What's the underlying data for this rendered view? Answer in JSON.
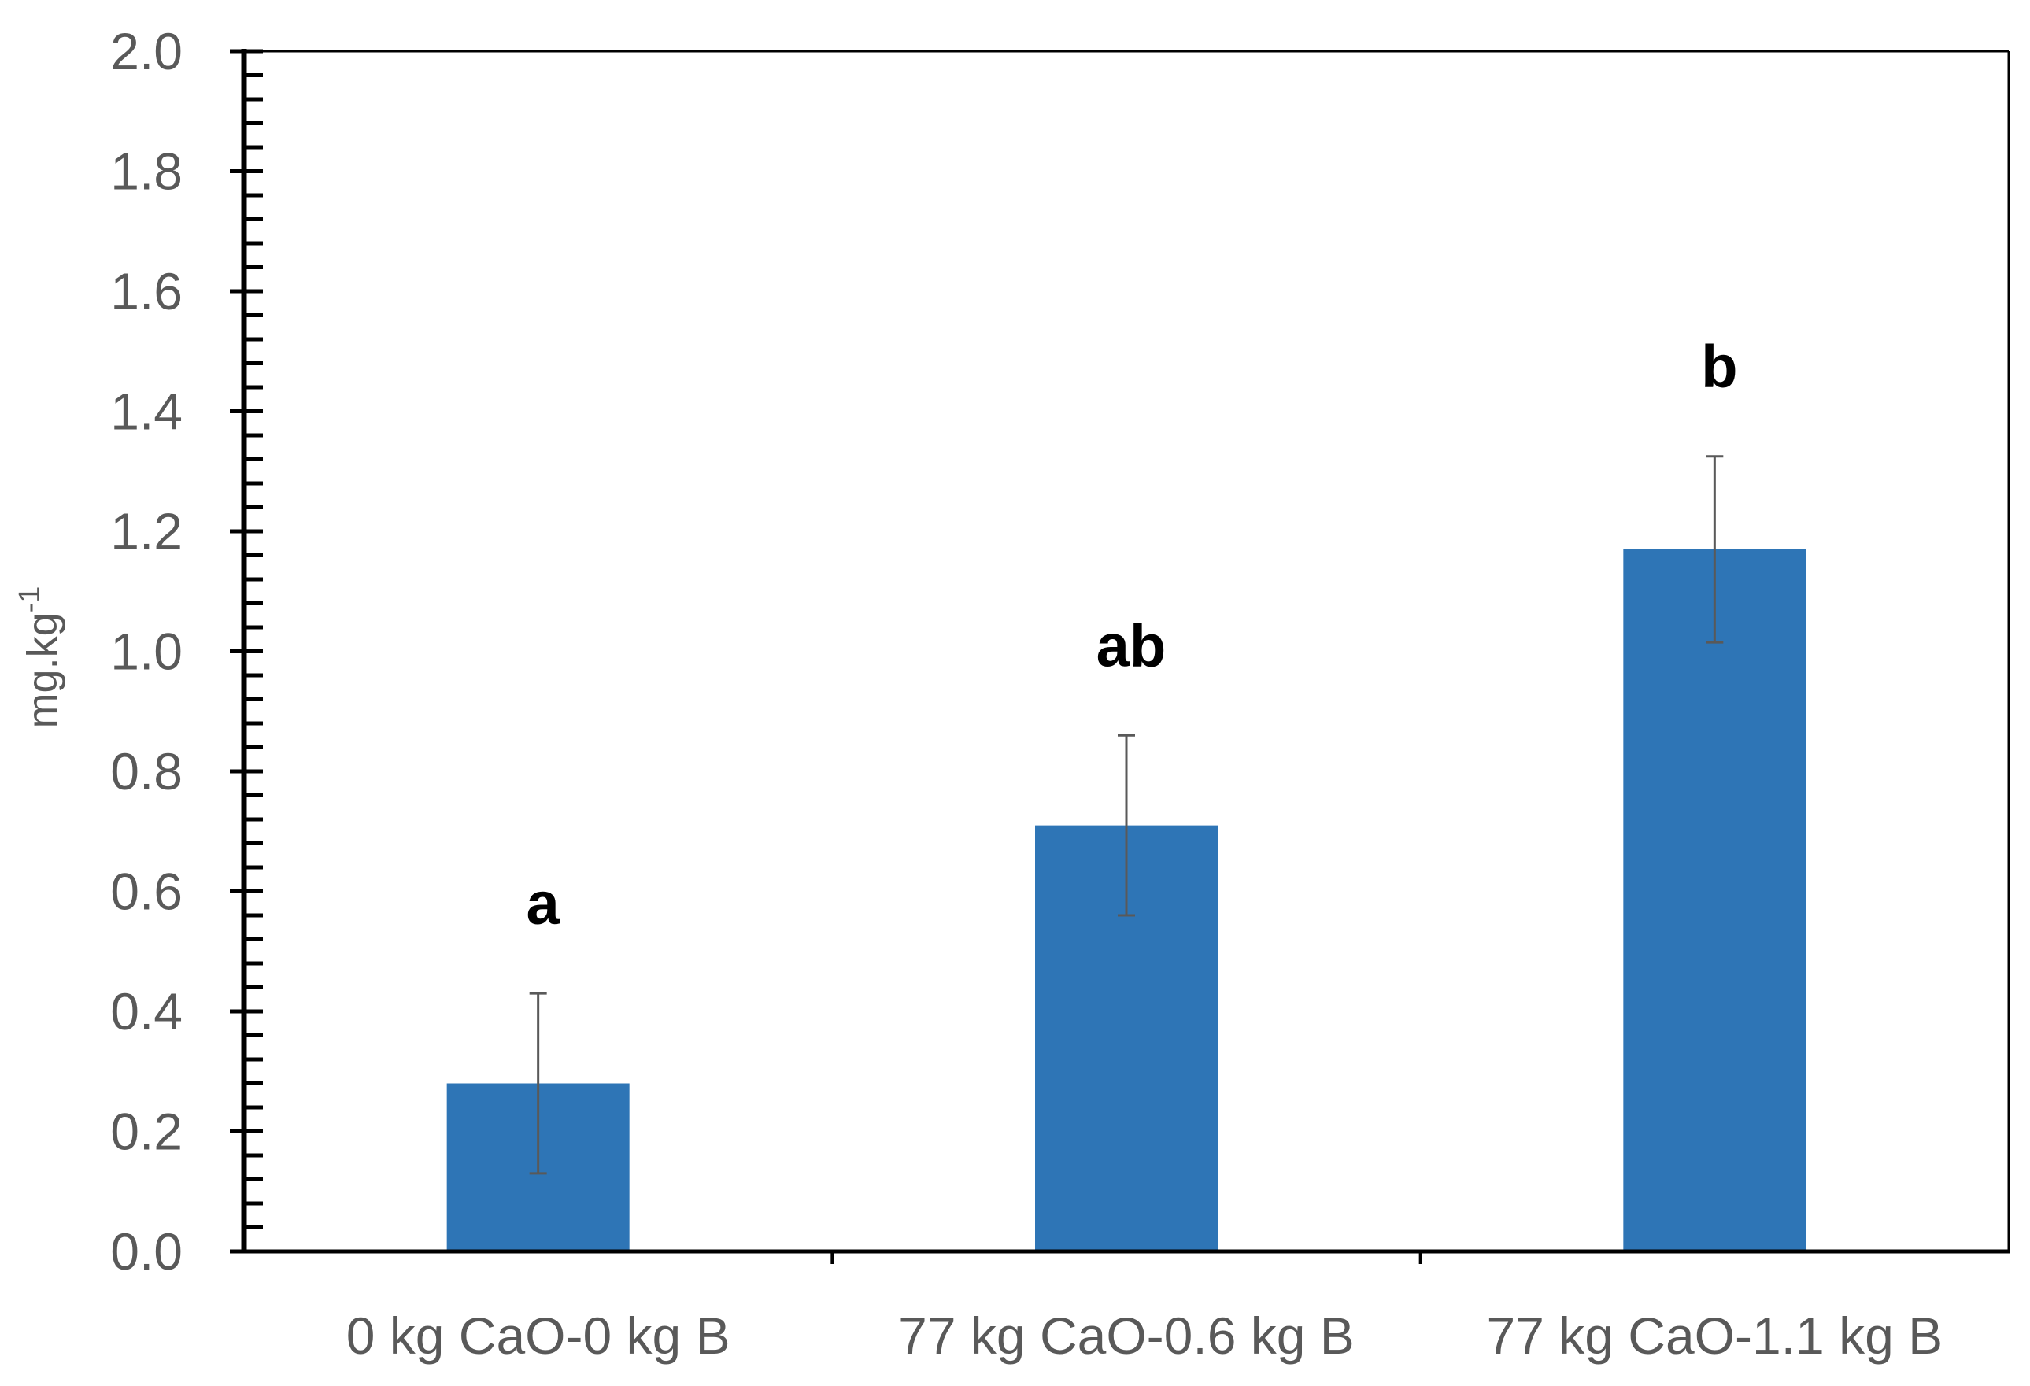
{
  "chart_data": {
    "type": "bar",
    "title": "",
    "xlabel": "",
    "ylabel": "mg.kg",
    "ylabel_superscript": "-1",
    "categories": [
      "0 kg CaO-0 kg B",
      "77 kg CaO-0.6 kg B",
      "77 kg CaO-1.1 kg B"
    ],
    "series": [
      {
        "name": "mg.kg-1",
        "values": [
          0.28,
          0.71,
          1.17
        ],
        "error": [
          0.15,
          0.15,
          0.155
        ],
        "significance": [
          "a",
          "ab",
          "b"
        ],
        "color": "#2E75B6"
      }
    ],
    "ylim": [
      0.0,
      2.0
    ],
    "yticks": [
      "0.0",
      "0.2",
      "0.4",
      "0.6",
      "0.8",
      "1.0",
      "1.2",
      "1.4",
      "1.6",
      "1.8",
      "2.0"
    ],
    "ytick_step": 0.2,
    "minor_tick_step": 0.04,
    "grid": false,
    "legend": "none",
    "axis_color": "#000000",
    "errorbar_color": "#595959",
    "text_color": "#595959"
  }
}
